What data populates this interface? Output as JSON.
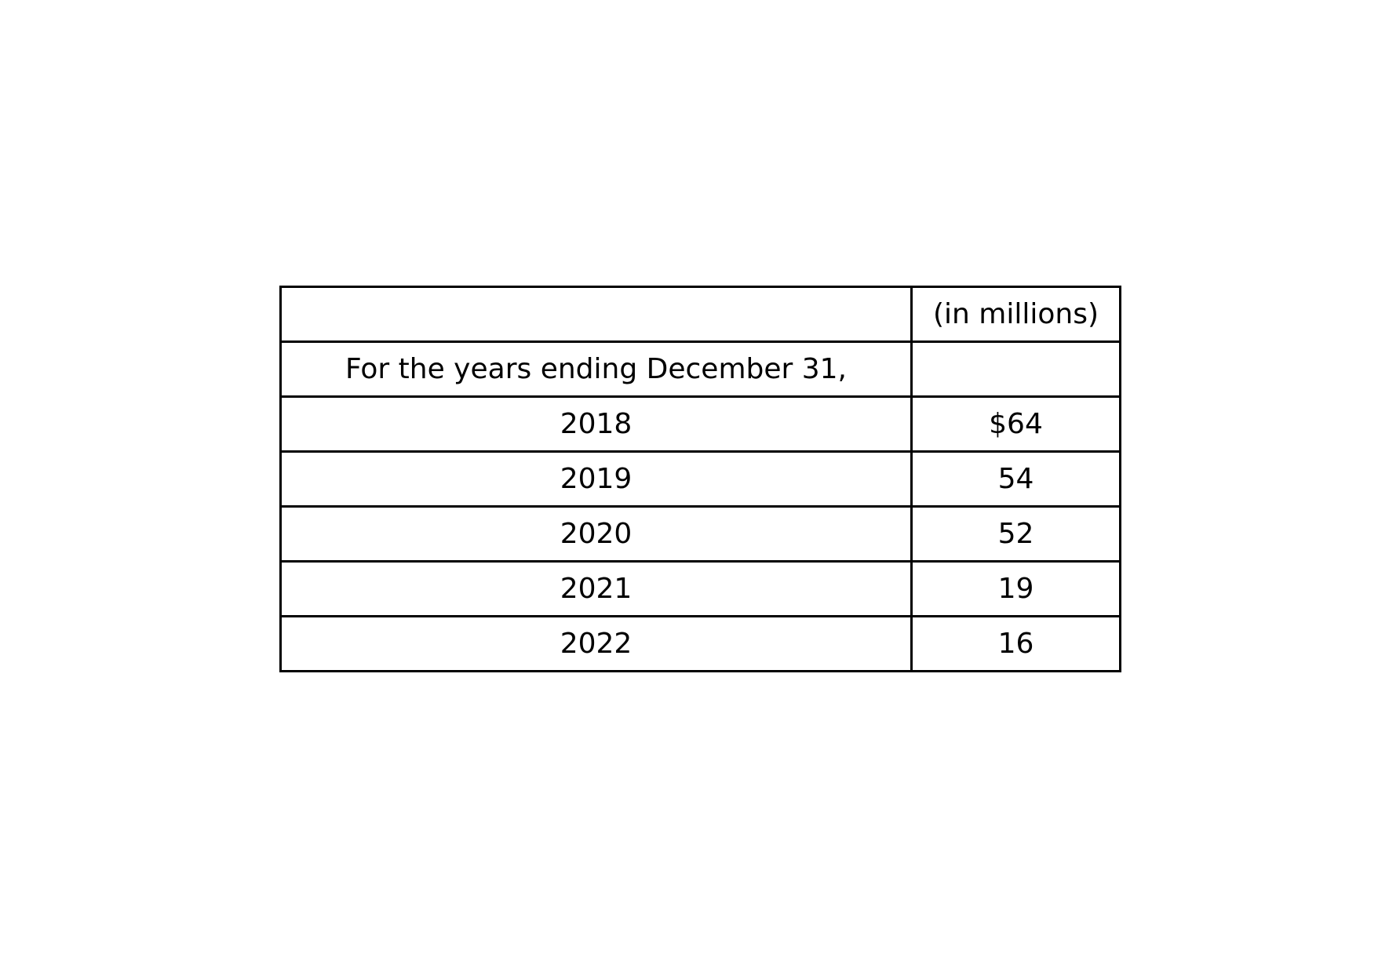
{
  "table": {
    "header_row": {
      "label": "",
      "value": "(in millions)"
    },
    "subheader_row": {
      "label": "For the years ending December 31,",
      "value": ""
    },
    "rows": [
      {
        "year": "2018",
        "amount": "$64"
      },
      {
        "year": "2019",
        "amount": "54"
      },
      {
        "year": "2020",
        "amount": "52"
      },
      {
        "year": "2021",
        "amount": "19"
      },
      {
        "year": "2022",
        "amount": "16"
      }
    ]
  }
}
